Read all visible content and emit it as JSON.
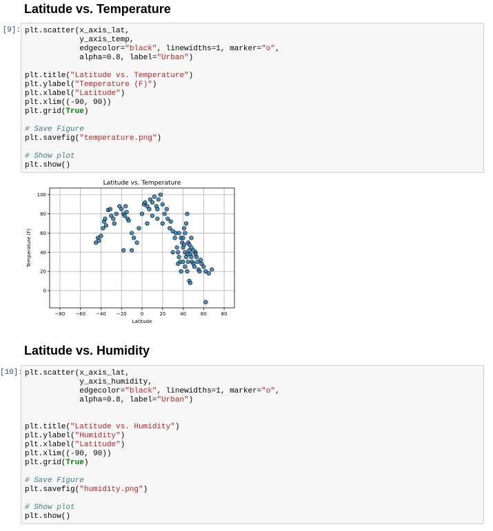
{
  "section1": {
    "heading": "Latitude vs. Temperature",
    "prompt": "[9]:",
    "code": [
      [
        "plt.scatter(x_axis_lat,",
        "            y_axis_temp,",
        "            edgecolor=\"black\", linewidths=1, marker=\"o\",",
        "            alpha=0.8, label=\"Urban\")"
      ],
      [
        "plt.title(\"Latitude vs. Temperature\")",
        "plt.ylabel(\"Temperature (F)\")",
        "plt.xlabel(\"Latitude\")",
        "plt.xlim((-90, 90))",
        "plt.grid(True)"
      ],
      [
        "# Save Figure",
        "plt.savefig(\"temperature.png\")"
      ],
      [
        "# Show plot",
        "plt.show()"
      ]
    ]
  },
  "section2": {
    "heading": "Latitude vs. Humidity",
    "prompt": "[10]:",
    "code": [
      [
        "plt.scatter(x_axis_lat,",
        "            y_axis_humidity,",
        "            edgecolor=\"black\", linewidths=1, marker=\"o\",",
        "            alpha=0.8, label=\"Urban\")"
      ],
      [
        "plt.title(\"Latitude vs. Humidity\")",
        "plt.ylabel(\"Humidity\")",
        "plt.xlabel(\"Latitude\")",
        "plt.xlim((-90, 90))",
        "plt.grid(True)"
      ],
      [
        "# Save Figure",
        "plt.savefig(\"humidity.png\")"
      ],
      [
        "# Show plot",
        "plt.show()"
      ]
    ]
  },
  "chart_data": {
    "type": "scatter",
    "title": "Latitude vs. Temperature",
    "xlabel": "Latitude",
    "ylabel": "Temperature (F)",
    "color": "#1f77b4",
    "edgecolor": "#000000",
    "alpha": 0.8,
    "grid": true,
    "xlim": [
      -90,
      90
    ],
    "ylim": [
      -18,
      107
    ],
    "xticks": [
      {
        "value": -80,
        "label": "−80"
      },
      {
        "value": -60,
        "label": "−60"
      },
      {
        "value": -40,
        "label": "−40"
      },
      {
        "value": -20,
        "label": "−20"
      },
      0,
      20,
      40,
      60,
      80
    ],
    "yticks": [
      0,
      20,
      40,
      60,
      80,
      100
    ],
    "x": [
      -45,
      -43,
      -40,
      -42,
      -38,
      -37,
      -36,
      -35,
      -33,
      -31,
      -30,
      -28,
      -27,
      -25,
      -22,
      -20,
      -18,
      -17,
      -16,
      -15,
      -14,
      -13,
      -10,
      -8,
      -5,
      -18,
      -10,
      -3,
      0,
      2,
      3,
      5,
      7,
      8,
      10,
      12,
      14,
      15,
      16,
      18,
      20,
      22,
      24,
      25,
      20,
      15,
      10,
      5,
      27,
      28,
      30,
      32,
      33,
      34,
      35,
      36,
      37,
      38,
      39,
      40,
      41,
      42,
      43,
      44,
      45,
      46,
      47,
      48,
      49,
      50,
      51,
      52,
      53,
      54,
      55,
      56,
      57,
      58,
      60,
      62,
      65,
      68,
      40,
      42,
      44,
      46,
      47,
      38,
      35,
      40,
      42,
      44,
      46,
      48,
      50,
      52,
      45,
      43,
      62,
      30,
      41,
      36,
      48
    ],
    "y": [
      50,
      55,
      57,
      52,
      65,
      72,
      75,
      68,
      84,
      85,
      78,
      75,
      70,
      80,
      88,
      85,
      80,
      78,
      88,
      82,
      75,
      73,
      60,
      55,
      50,
      42,
      42,
      65,
      80,
      90,
      92,
      88,
      85,
      95,
      92,
      98,
      88,
      85,
      95,
      100,
      90,
      80,
      85,
      75,
      70,
      75,
      78,
      70,
      65,
      72,
      62,
      55,
      60,
      45,
      40,
      35,
      30,
      55,
      50,
      45,
      48,
      60,
      70,
      80,
      50,
      42,
      38,
      35,
      30,
      28,
      25,
      40,
      35,
      30,
      22,
      20,
      32,
      28,
      25,
      20,
      18,
      22,
      30,
      25,
      20,
      10,
      8,
      20,
      28,
      55,
      40,
      38,
      48,
      45,
      42,
      38,
      30,
      35,
      -12,
      40,
      65,
      60,
      55
    ]
  }
}
